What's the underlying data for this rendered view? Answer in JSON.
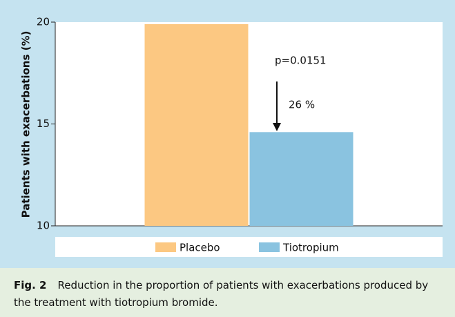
{
  "chart_data": {
    "type": "bar",
    "ylabel": "Patients with exacerbations (%)",
    "categories": [
      null
    ],
    "series": [
      {
        "name": "Placebo",
        "color": "#fcc882",
        "values": [
          19.9
        ]
      },
      {
        "name": "Tiotropium",
        "color": "#8ac3e0",
        "values": [
          14.6
        ]
      }
    ],
    "ylim": [
      10,
      20
    ],
    "yticks": [
      10,
      15,
      20
    ],
    "annotations": [
      "p=0.0151",
      "26 %"
    ]
  },
  "caption": {
    "label": "Fig. 2",
    "text": "Reduction in the proportion of patients with exacerbations produced by the treatment with tiotropium bromide."
  }
}
